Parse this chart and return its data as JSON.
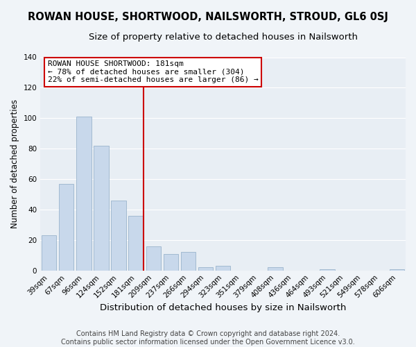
{
  "title": "ROWAN HOUSE, SHORTWOOD, NAILSWORTH, STROUD, GL6 0SJ",
  "subtitle": "Size of property relative to detached houses in Nailsworth",
  "xlabel": "Distribution of detached houses by size in Nailsworth",
  "ylabel": "Number of detached properties",
  "categories": [
    "39sqm",
    "67sqm",
    "96sqm",
    "124sqm",
    "152sqm",
    "181sqm",
    "209sqm",
    "237sqm",
    "266sqm",
    "294sqm",
    "323sqm",
    "351sqm",
    "379sqm",
    "408sqm",
    "436sqm",
    "464sqm",
    "493sqm",
    "521sqm",
    "549sqm",
    "578sqm",
    "606sqm"
  ],
  "values": [
    23,
    57,
    101,
    82,
    46,
    36,
    16,
    11,
    12,
    2,
    3,
    0,
    0,
    2,
    0,
    0,
    1,
    0,
    0,
    0,
    1
  ],
  "bar_color": "#c8d8eb",
  "bar_edge_color": "#9ab4cc",
  "vline_index": 5,
  "vline_color": "#cc0000",
  "annotation_title": "ROWAN HOUSE SHORTWOOD: 181sqm",
  "annotation_line1": "← 78% of detached houses are smaller (304)",
  "annotation_line2": "22% of semi-detached houses are larger (86) →",
  "annotation_box_facecolor": "#ffffff",
  "annotation_box_edgecolor": "#cc0000",
  "ylim": [
    0,
    140
  ],
  "yticks": [
    0,
    20,
    40,
    60,
    80,
    100,
    120,
    140
  ],
  "footer1": "Contains HM Land Registry data © Crown copyright and database right 2024.",
  "footer2": "Contains public sector information licensed under the Open Government Licence v3.0.",
  "background_color": "#f0f4f8",
  "plot_bg_color": "#e8eef4",
  "grid_color": "#ffffff",
  "title_fontsize": 10.5,
  "subtitle_fontsize": 9.5,
  "xlabel_fontsize": 9.5,
  "ylabel_fontsize": 8.5,
  "tick_fontsize": 7.5,
  "annotation_fontsize": 8,
  "footer_fontsize": 7
}
